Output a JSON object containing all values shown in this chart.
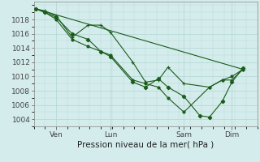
{
  "background_color": "#d4ecec",
  "grid_color": "#b8d8d8",
  "line_color": "#1a5c1a",
  "marker_color": "#1a5c1a",
  "ylabel_ticks": [
    1004,
    1006,
    1008,
    1010,
    1012,
    1014,
    1016,
    1018
  ],
  "xlabel": "Pression niveau de la mer( hPa )",
  "xlabel_fontsize": 7.5,
  "tick_fontsize": 6.5,
  "ylim": [
    1003,
    1020.5
  ],
  "xlim": [
    0,
    7.0
  ],
  "day_labels": [
    "Ven",
    "Lun",
    "Sam",
    "Dim"
  ],
  "day_positions": [
    0.7,
    2.4,
    4.7,
    6.2
  ],
  "series1_x": [
    0.05,
    0.35,
    0.7,
    1.2,
    1.7,
    2.1,
    2.4,
    3.1,
    3.5,
    3.9,
    4.2,
    4.7,
    5.5,
    5.9,
    6.2,
    6.55
  ],
  "series1_y": [
    1019.5,
    1019.2,
    1018.5,
    1015.5,
    1017.2,
    1017.2,
    1016.2,
    1012.0,
    1009.2,
    1009.5,
    1011.3,
    1009.0,
    1008.5,
    1009.5,
    1009.5,
    1011.0
  ],
  "series2_x": [
    0.05,
    0.35,
    0.7,
    1.2,
    1.7,
    2.1,
    2.4,
    3.1,
    3.5,
    3.9,
    4.2,
    4.7,
    5.2,
    5.5,
    5.9,
    6.2,
    6.55
  ],
  "series2_y": [
    1019.5,
    1019.0,
    1018.3,
    1016.0,
    1015.2,
    1013.5,
    1012.8,
    1009.2,
    1008.5,
    1009.7,
    1008.5,
    1007.2,
    1004.5,
    1004.3,
    1006.5,
    1009.2,
    1011.2
  ],
  "series3_x": [
    0.05,
    0.35,
    0.7,
    1.2,
    1.7,
    2.4,
    3.1,
    3.5,
    3.9,
    4.2,
    4.7,
    5.5,
    5.9,
    6.2,
    6.55
  ],
  "series3_y": [
    1019.5,
    1019.0,
    1018.0,
    1015.2,
    1014.2,
    1013.0,
    1009.5,
    1009.0,
    1008.5,
    1007.0,
    1005.0,
    1008.5,
    1009.5,
    1010.0,
    1011.0
  ],
  "series4_x": [
    0.05,
    6.55
  ],
  "series4_y": [
    1019.5,
    1011.0
  ]
}
